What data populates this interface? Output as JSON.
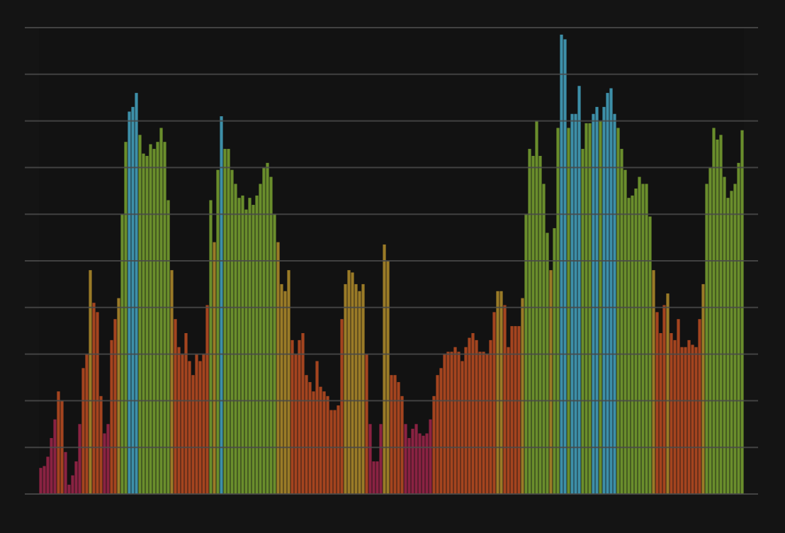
{
  "chart_data": {
    "type": "bar",
    "values": [
      0.56,
      0.6,
      0.8,
      1.2,
      1.6,
      2.2,
      2.0,
      0.9,
      0.2,
      0.4,
      0.7,
      1.5,
      2.7,
      3.0,
      4.8,
      4.1,
      3.9,
      2.1,
      1.3,
      1.5,
      3.3,
      3.75,
      4.2,
      6.0,
      7.55,
      8.2,
      8.3,
      8.6,
      7.7,
      7.3,
      7.25,
      7.5,
      7.4,
      7.55,
      7.85,
      7.55,
      6.3,
      4.8,
      3.75,
      3.15,
      3.0,
      3.45,
      2.85,
      2.55,
      3.0,
      2.85,
      3.0,
      4.05,
      6.3,
      5.4,
      6.95,
      8.1,
      7.4,
      7.4,
      6.95,
      6.65,
      6.35,
      6.4,
      6.1,
      6.35,
      6.2,
      6.4,
      6.65,
      7.0,
      7.1,
      6.8,
      6.0,
      5.4,
      4.5,
      4.35,
      4.8,
      3.3,
      3.0,
      3.3,
      3.45,
      2.55,
      2.4,
      2.2,
      2.85,
      2.3,
      2.2,
      2.1,
      1.8,
      1.8,
      1.9,
      3.75,
      4.5,
      4.8,
      4.75,
      4.5,
      4.35,
      4.5,
      3.0,
      1.5,
      0.7,
      0.7,
      1.5,
      5.35,
      5.0,
      2.55,
      2.55,
      2.4,
      2.1,
      1.5,
      1.2,
      1.4,
      1.5,
      1.3,
      1.25,
      1.3,
      1.6,
      2.1,
      2.55,
      2.7,
      3.0,
      3.05,
      3.05,
      3.15,
      3.05,
      2.85,
      3.15,
      3.35,
      3.45,
      3.3,
      3.05,
      3.05,
      3.0,
      3.3,
      3.9,
      4.35,
      4.35,
      4.05,
      3.15,
      3.6,
      3.6,
      3.6,
      4.2,
      6.0,
      7.4,
      7.25,
      8.0,
      7.25,
      6.65,
      5.6,
      4.8,
      5.7,
      7.85,
      9.85,
      9.75,
      7.85,
      8.15,
      8.15,
      8.75,
      7.4,
      7.95,
      7.95,
      8.15,
      8.3,
      8.0,
      8.3,
      8.6,
      8.7,
      8.15,
      7.85,
      7.4,
      6.95,
      6.35,
      6.4,
      6.55,
      6.8,
      6.65,
      6.65,
      5.95,
      4.8,
      3.9,
      3.45,
      4.05,
      4.3,
      3.45,
      3.3,
      3.75,
      3.15,
      3.15,
      3.3,
      3.2,
      3.15,
      3.75,
      4.5,
      6.65,
      7.0,
      7.85,
      7.6,
      7.7,
      6.8,
      6.35,
      6.5,
      6.65,
      7.1,
      7.8
    ],
    "color_thresholds": [
      {
        "below": 1.8,
        "color": "#8a2242"
      },
      {
        "below": 4.2,
        "color": "#a4441f"
      },
      {
        "below": 5.5,
        "color": "#9a7b27"
      },
      {
        "below": 8.05,
        "color": "#6a8e2c"
      },
      {
        "below": 11,
        "color": "#3d8fa8"
      }
    ],
    "ylim": [
      0,
      10
    ],
    "yticks": [
      0,
      1,
      2,
      3,
      4,
      5,
      6,
      7,
      8,
      9,
      10
    ],
    "grid": true
  }
}
